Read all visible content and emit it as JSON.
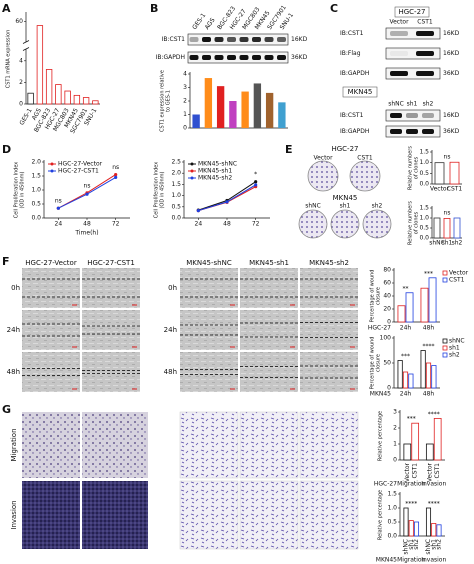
{
  "panel_labels": [
    "A",
    "B",
    "C",
    "D",
    "E",
    "F",
    "G"
  ],
  "blots": {
    "B": {
      "lanes": [
        "GES-1",
        "AGS",
        "BGC-823",
        "HGC-27",
        "MGC803",
        "MKN45",
        "SGC7901",
        "SNU-1"
      ],
      "rows": [
        "IB:CST1",
        "IB:GAPDH"
      ],
      "sizes": [
        "16KD",
        "36KD"
      ]
    },
    "C_top": {
      "title": "HGC-27",
      "lanes": [
        "Vector",
        "CST1"
      ],
      "rows": [
        "IB:CST1",
        "IB:Flag",
        "IB:GAPDH"
      ],
      "sizes": [
        "16KD",
        "16KD",
        "36KD"
      ]
    },
    "C_bottom": {
      "title": "MKN45",
      "lanes": [
        "shNC",
        "sh1",
        "sh2"
      ],
      "rows": [
        "IB:CST1",
        "IB:GAPDH"
      ],
      "sizes": [
        "16KD",
        "36KD"
      ]
    }
  },
  "colony": {
    "top": {
      "title": "HGC-27",
      "labels": [
        "Vector",
        "CST1"
      ]
    },
    "bottom": {
      "title": "MKN45",
      "labels": [
        "shNC",
        "sh1",
        "sh2"
      ]
    }
  },
  "wound": {
    "columns": [
      "HGC-27-Vector",
      "HGC-27-CST1",
      "MKN45-shNC",
      "MKN45-sh1",
      "MKN45-sh2"
    ],
    "rows": [
      "0h",
      "24h",
      "48h"
    ]
  },
  "transwell": {
    "rows": [
      "Migration",
      "Invasion"
    ]
  },
  "chart_data": [
    {
      "type": "bar",
      "y_label": "CST1 mRNA expression",
      "categories": [
        "GES-1",
        "AGS",
        "BGC-823",
        "HGC-27",
        "MGC803",
        "MKN45",
        "SGC7901",
        "SNU-1"
      ],
      "values": [
        1,
        58,
        3.2,
        1.8,
        1.2,
        0.8,
        0.6,
        0.3
      ],
      "colors": [
        "#222222",
        "#e02020",
        "#e02020",
        "#e02020",
        "#e02020",
        "#e02020",
        "#e02020",
        "#e02020"
      ],
      "fill": "hollow",
      "ylim": [
        0,
        64
      ],
      "axis_break": [
        5,
        50
      ],
      "yticks": [
        0,
        2,
        4,
        60
      ],
      "x_label_rotation": -60
    },
    {
      "type": "bar",
      "y_label": [
        "CST1 expression relative",
        "to GES-1"
      ],
      "values": [
        1,
        3.7,
        3.1,
        2.0,
        2.7,
        3.3,
        2.6,
        1.9
      ],
      "colors": [
        "#3050d0",
        "#ff8c1a",
        "#e02020",
        "#c040c0",
        "#ff8c1a",
        "#555555",
        "#a0622d",
        "#40a0d0"
      ],
      "ylim": [
        0,
        4
      ],
      "yticks": [
        0,
        1,
        2,
        3,
        4
      ]
    },
    {
      "type": "line",
      "x": [
        24,
        48,
        72
      ],
      "xlim": [
        12,
        84
      ],
      "xticks": [
        24,
        48,
        72
      ],
      "x_label": "Time(h)",
      "y_label": [
        "Cell Proliferation Index",
        "(OD in 450nm)"
      ],
      "ylim": [
        0,
        2
      ],
      "yticks": [
        {
          "value": 0,
          "label": "0.0"
        },
        {
          "value": 0.5,
          "label": "0.5"
        },
        {
          "value": 1,
          "label": "1.0"
        },
        {
          "value": 1.5,
          "label": "1.5"
        },
        {
          "value": 2,
          "label": "2.0"
        }
      ],
      "series": [
        {
          "name": "HGC-27-Vector",
          "color": "#e02020",
          "values": [
            0.35,
            0.9,
            1.55
          ]
        },
        {
          "name": "HGC-27-CST1",
          "color": "#2040e0",
          "values": [
            0.35,
            0.85,
            1.45
          ]
        }
      ],
      "annotations": [
        "ns",
        "ns",
        "ns"
      ],
      "legend": "top-left"
    },
    {
      "type": "line",
      "x": [
        24,
        48,
        72
      ],
      "xlim": [
        12,
        84
      ],
      "xticks": [
        24,
        48,
        72
      ],
      "y_label": [
        "Cell Proliferation Index",
        "(OD in 450nm)"
      ],
      "ylim": [
        0,
        2.5
      ],
      "yticks": [
        {
          "value": 0,
          "label": "0.0"
        },
        {
          "value": 0.5,
          "label": "0.5"
        },
        {
          "value": 1,
          "label": "1.0"
        },
        {
          "value": 1.5,
          "label": "1.5"
        },
        {
          "value": 2,
          "label": "2.0"
        },
        {
          "value": 2.5,
          "label": "2.5"
        }
      ],
      "series": [
        {
          "name": "MKN45-shNC",
          "color": "#111111",
          "values": [
            0.35,
            0.78,
            1.62
          ]
        },
        {
          "name": "MKN45-sh1",
          "color": "#e02020",
          "values": [
            0.33,
            0.7,
            1.4
          ]
        },
        {
          "name": "MKN45-sh2",
          "color": "#2040e0",
          "values": [
            0.33,
            0.72,
            1.48
          ]
        }
      ],
      "annotations": [
        null,
        null,
        "*"
      ],
      "legend": "top-left"
    },
    {
      "type": "bar",
      "y_label": [
        "Relative numbers",
        "of clones"
      ],
      "categories": [
        "Vector",
        "CST1"
      ],
      "values": [
        1.0,
        1.02
      ],
      "colors": [
        "#333333",
        "#e02020"
      ],
      "fill": "hollow",
      "ylim": [
        0,
        1.5
      ],
      "yticks": [
        {
          "value": 0,
          "label": "0.0"
        },
        {
          "value": 0.5,
          "label": "0.5"
        },
        {
          "value": 1,
          "label": "1.0"
        },
        {
          "value": 1.5,
          "label": "1.5"
        }
      ],
      "significance": "ns"
    },
    {
      "type": "bar",
      "y_label": [
        "Relative numbers",
        "of clones"
      ],
      "categories": [
        "shNC",
        "sh1",
        "sh2"
      ],
      "values": [
        1.0,
        0.98,
        1.0
      ],
      "colors": [
        "#333333",
        "#e02020",
        "#3050d0"
      ],
      "fill": "hollow",
      "ylim": [
        0,
        1.5
      ],
      "yticks": [
        {
          "value": 0,
          "label": "0.0"
        },
        {
          "value": 0.5,
          "label": "0.5"
        },
        {
          "value": 1,
          "label": "1.0"
        },
        {
          "value": 1.5,
          "label": "1.5"
        }
      ],
      "significance": "ns"
    },
    {
      "type": "bar",
      "y_label": [
        "Percentage of wound",
        "closure"
      ],
      "categories": [
        "24h",
        "48h"
      ],
      "series": [
        {
          "name": "Vector",
          "color": "#e02020",
          "values": [
            25,
            52
          ]
        },
        {
          "name": "CST1",
          "color": "#2040e0",
          "values": [
            45,
            68
          ]
        }
      ],
      "fill": "hollow",
      "ylim": [
        0,
        80
      ],
      "yticks": [
        0,
        20,
        40,
        60,
        80
      ],
      "group_label": "HGC-27",
      "significance": [
        "**",
        "***"
      ],
      "legend": "right"
    },
    {
      "type": "bar",
      "y_label": [
        "Percentage of wound",
        "closure"
      ],
      "categories": [
        "24h",
        "48h"
      ],
      "series": [
        {
          "name": "shNC",
          "color": "#111111",
          "values": [
            55,
            75
          ]
        },
        {
          "name": "sh1",
          "color": "#e02020",
          "values": [
            32,
            50
          ]
        },
        {
          "name": "sh2",
          "color": "#2040e0",
          "values": [
            28,
            45
          ]
        }
      ],
      "fill": "hollow",
      "ylim": [
        0,
        100
      ],
      "yticks": [
        0,
        50,
        100
      ],
      "group_label": "MKN45",
      "significance": [
        "***",
        "****"
      ],
      "legend": "right"
    },
    {
      "type": "bar",
      "y_label": "Relative percentage",
      "categories": [
        "Migration",
        "Invasion"
      ],
      "series": [
        {
          "name": "Vector",
          "color": "#111111",
          "values": [
            1.0,
            1.0
          ]
        },
        {
          "name": "CST1",
          "color": "#e02020",
          "values": [
            2.3,
            2.6
          ]
        }
      ],
      "fill": "hollow",
      "ylim": [
        0,
        3
      ],
      "yticks": [
        0,
        1,
        2,
        3
      ],
      "group_label": "HGC-27",
      "significance": [
        "***",
        "****"
      ],
      "legend": "below-bars"
    },
    {
      "type": "bar",
      "y_label": "Relative percentage",
      "categories": [
        "Migration",
        "Invasion"
      ],
      "series": [
        {
          "name": "shNC",
          "color": "#111111",
          "values": [
            1.0,
            1.0
          ]
        },
        {
          "name": "sh1",
          "color": "#e02020",
          "values": [
            0.55,
            0.45
          ]
        },
        {
          "name": "sh2",
          "color": "#2040e0",
          "values": [
            0.5,
            0.4
          ]
        }
      ],
      "fill": "hollow",
      "ylim": [
        0,
        1.5
      ],
      "yticks": [
        {
          "value": 0,
          "label": "0.0"
        },
        {
          "value": 0.5,
          "label": "0.5"
        },
        {
          "value": 1,
          "label": "1.0"
        },
        {
          "value": 1.5,
          "label": "1.5"
        }
      ],
      "group_label": "MKN45",
      "significance": [
        "****",
        "****"
      ],
      "legend": "below-bars"
    }
  ]
}
